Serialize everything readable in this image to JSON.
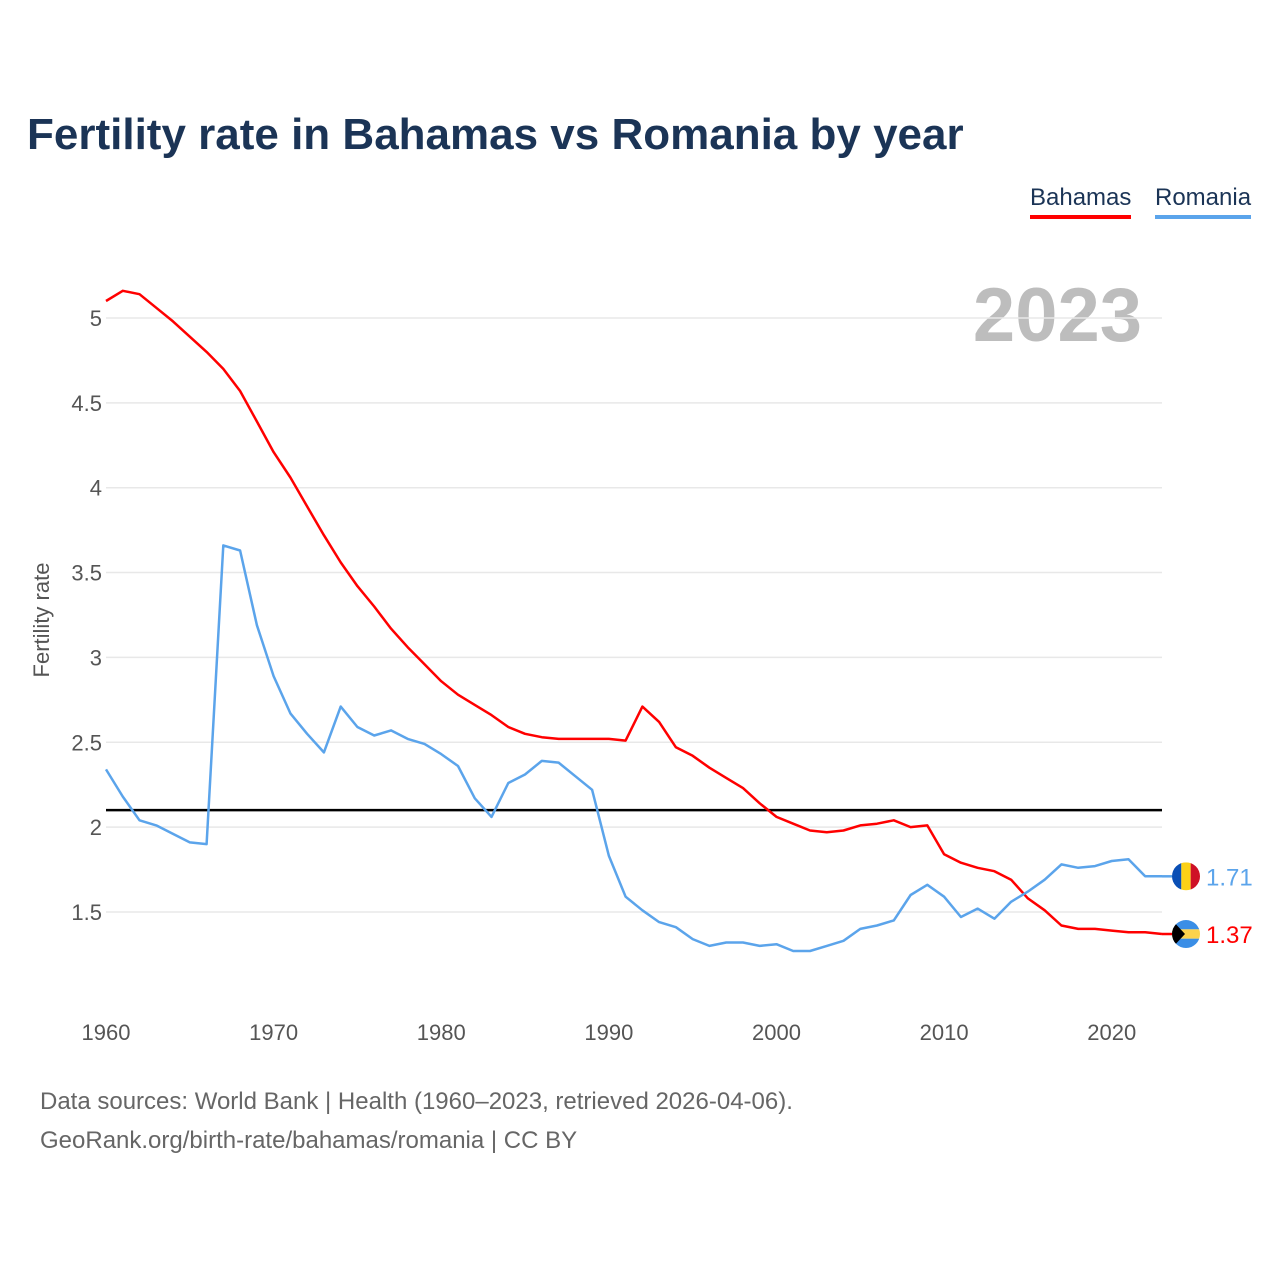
{
  "chart_data": {
    "type": "line",
    "title": "Fertility rate in Bahamas vs Romania by year",
    "xlabel": "",
    "ylabel": "Fertility rate",
    "year_badge": "2023",
    "xlim": [
      1960,
      2023
    ],
    "ylim": [
      1.0,
      5.2
    ],
    "x_ticks": [
      "1960",
      "1970",
      "1980",
      "1990",
      "2000",
      "2010",
      "2020"
    ],
    "y_ticks": [
      "1.5",
      "2",
      "2.5",
      "3",
      "3.5",
      "4",
      "4.5",
      "5"
    ],
    "grid": true,
    "legend_position": "top-right",
    "reference_line": 2.1,
    "x": [
      1960,
      1961,
      1962,
      1963,
      1964,
      1965,
      1966,
      1967,
      1968,
      1969,
      1970,
      1971,
      1972,
      1973,
      1974,
      1975,
      1976,
      1977,
      1978,
      1979,
      1980,
      1981,
      1982,
      1983,
      1984,
      1985,
      1986,
      1987,
      1988,
      1989,
      1990,
      1991,
      1992,
      1993,
      1994,
      1995,
      1996,
      1997,
      1998,
      1999,
      2000,
      2001,
      2002,
      2003,
      2004,
      2005,
      2006,
      2007,
      2008,
      2009,
      2010,
      2011,
      2012,
      2013,
      2014,
      2015,
      2016,
      2017,
      2018,
      2019,
      2020,
      2021,
      2022,
      2023
    ],
    "series": [
      {
        "name": "Bahamas",
        "color": "#ff0000",
        "end_label": "1.37",
        "values": [
          5.1,
          5.16,
          5.14,
          5.06,
          4.98,
          4.89,
          4.8,
          4.7,
          4.57,
          4.39,
          4.21,
          4.06,
          3.89,
          3.72,
          3.56,
          3.42,
          3.3,
          3.17,
          3.06,
          2.96,
          2.86,
          2.78,
          2.72,
          2.66,
          2.59,
          2.55,
          2.53,
          2.52,
          2.52,
          2.52,
          2.52,
          2.51,
          2.71,
          2.62,
          2.47,
          2.42,
          2.35,
          2.29,
          2.23,
          2.14,
          2.06,
          2.02,
          1.98,
          1.97,
          1.98,
          2.01,
          2.02,
          2.04,
          2.0,
          2.01,
          1.84,
          1.79,
          1.76,
          1.74,
          1.69,
          1.58,
          1.51,
          1.42,
          1.4,
          1.4,
          1.39,
          1.38,
          1.38,
          1.37
        ]
      },
      {
        "name": "Romania",
        "color": "#5ba4eb",
        "end_label": "1.71",
        "values": [
          2.34,
          2.18,
          2.04,
          2.01,
          1.96,
          1.91,
          1.9,
          3.66,
          3.63,
          3.19,
          2.89,
          2.67,
          2.55,
          2.44,
          2.71,
          2.59,
          2.54,
          2.57,
          2.52,
          2.49,
          2.43,
          2.36,
          2.17,
          2.06,
          2.26,
          2.31,
          2.39,
          2.38,
          2.3,
          2.22,
          1.83,
          1.59,
          1.51,
          1.44,
          1.41,
          1.34,
          1.3,
          1.32,
          1.32,
          1.3,
          1.31,
          1.27,
          1.27,
          1.3,
          1.33,
          1.4,
          1.42,
          1.45,
          1.6,
          1.66,
          1.59,
          1.47,
          1.52,
          1.46,
          1.56,
          1.62,
          1.69,
          1.78,
          1.76,
          1.77,
          1.8,
          1.81,
          1.71,
          1.71
        ]
      }
    ]
  },
  "footer": {
    "sources": "Data sources: World Bank | Health (1960–2023, retrieved 2026-04-06).",
    "credit": "GeoRank.org/birth-rate/bahamas/romania | CC BY"
  }
}
